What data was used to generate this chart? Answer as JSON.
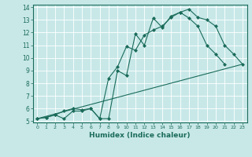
{
  "xlabel": "Humidex (Indice chaleur)",
  "bg_color": "#c8e8e8",
  "grid_color": "#ffffff",
  "line_color": "#1a6b5a",
  "xlim": [
    -0.5,
    23.5
  ],
  "ylim": [
    4.9,
    14.2
  ],
  "xticks": [
    0,
    1,
    2,
    3,
    4,
    5,
    6,
    7,
    8,
    9,
    10,
    11,
    12,
    13,
    14,
    15,
    16,
    17,
    18,
    19,
    20,
    21,
    22,
    23
  ],
  "yticks": [
    5,
    6,
    7,
    8,
    9,
    10,
    11,
    12,
    13,
    14
  ],
  "line1_x": [
    0,
    1,
    2,
    3,
    4,
    5,
    6,
    7,
    8,
    9,
    10,
    11,
    12,
    13,
    14,
    15,
    16,
    17,
    18,
    19,
    20,
    21,
    22,
    23
  ],
  "line1_y": [
    5.2,
    5.3,
    5.5,
    5.2,
    5.8,
    5.8,
    6.0,
    5.2,
    5.2,
    9.0,
    8.6,
    11.9,
    11.0,
    13.15,
    12.4,
    13.3,
    13.6,
    13.85,
    13.2,
    13.0,
    12.5,
    11.0,
    10.3,
    9.5
  ],
  "line2_x": [
    0,
    1,
    2,
    3,
    4,
    5,
    6,
    7,
    8,
    9,
    10,
    11,
    12,
    13,
    14,
    15,
    16,
    17,
    18,
    19,
    20,
    21,
    22,
    23
  ],
  "line2_y": [
    5.2,
    5.3,
    5.5,
    5.8,
    6.0,
    5.9,
    6.0,
    5.2,
    8.4,
    9.3,
    10.9,
    10.6,
    11.8,
    12.2,
    12.5,
    13.2,
    13.6,
    13.15,
    12.5,
    11.0,
    10.3,
    9.5,
    null,
    null
  ],
  "line3_x": [
    0,
    23
  ],
  "line3_y": [
    5.2,
    9.5
  ]
}
